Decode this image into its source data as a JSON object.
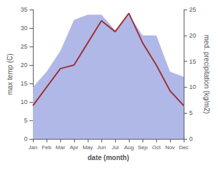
{
  "chart_data": {
    "type": "line",
    "xlabel": "date (month)",
    "ylabel": "max temp (C)",
    "y2label": "med. precipitation (kg/m2)",
    "categories": [
      "Jan",
      "Feb",
      "Mar",
      "Apr",
      "May",
      "Jun",
      "Jul",
      "Aug",
      "Sep",
      "Oct",
      "Nov",
      "Dec"
    ],
    "series": [
      {
        "type": "area",
        "color": "#b0b8e8",
        "axis": "y2",
        "values": [
          10,
          13,
          17,
          23,
          24,
          24,
          21,
          24,
          20,
          20,
          13,
          12
        ]
      },
      {
        "type": "line",
        "color": "#a03030",
        "values": [
          9,
          14,
          19,
          20,
          26,
          32,
          29,
          34,
          26,
          20,
          13,
          9
        ]
      }
    ],
    "ylim": [
      0,
      35
    ],
    "yticks": [
      0,
      5,
      10,
      15,
      20,
      25,
      30,
      35
    ],
    "y2lim": [
      0,
      25
    ],
    "y2ticks": [
      0,
      5,
      10,
      15,
      20,
      25
    ],
    "grid": false
  }
}
